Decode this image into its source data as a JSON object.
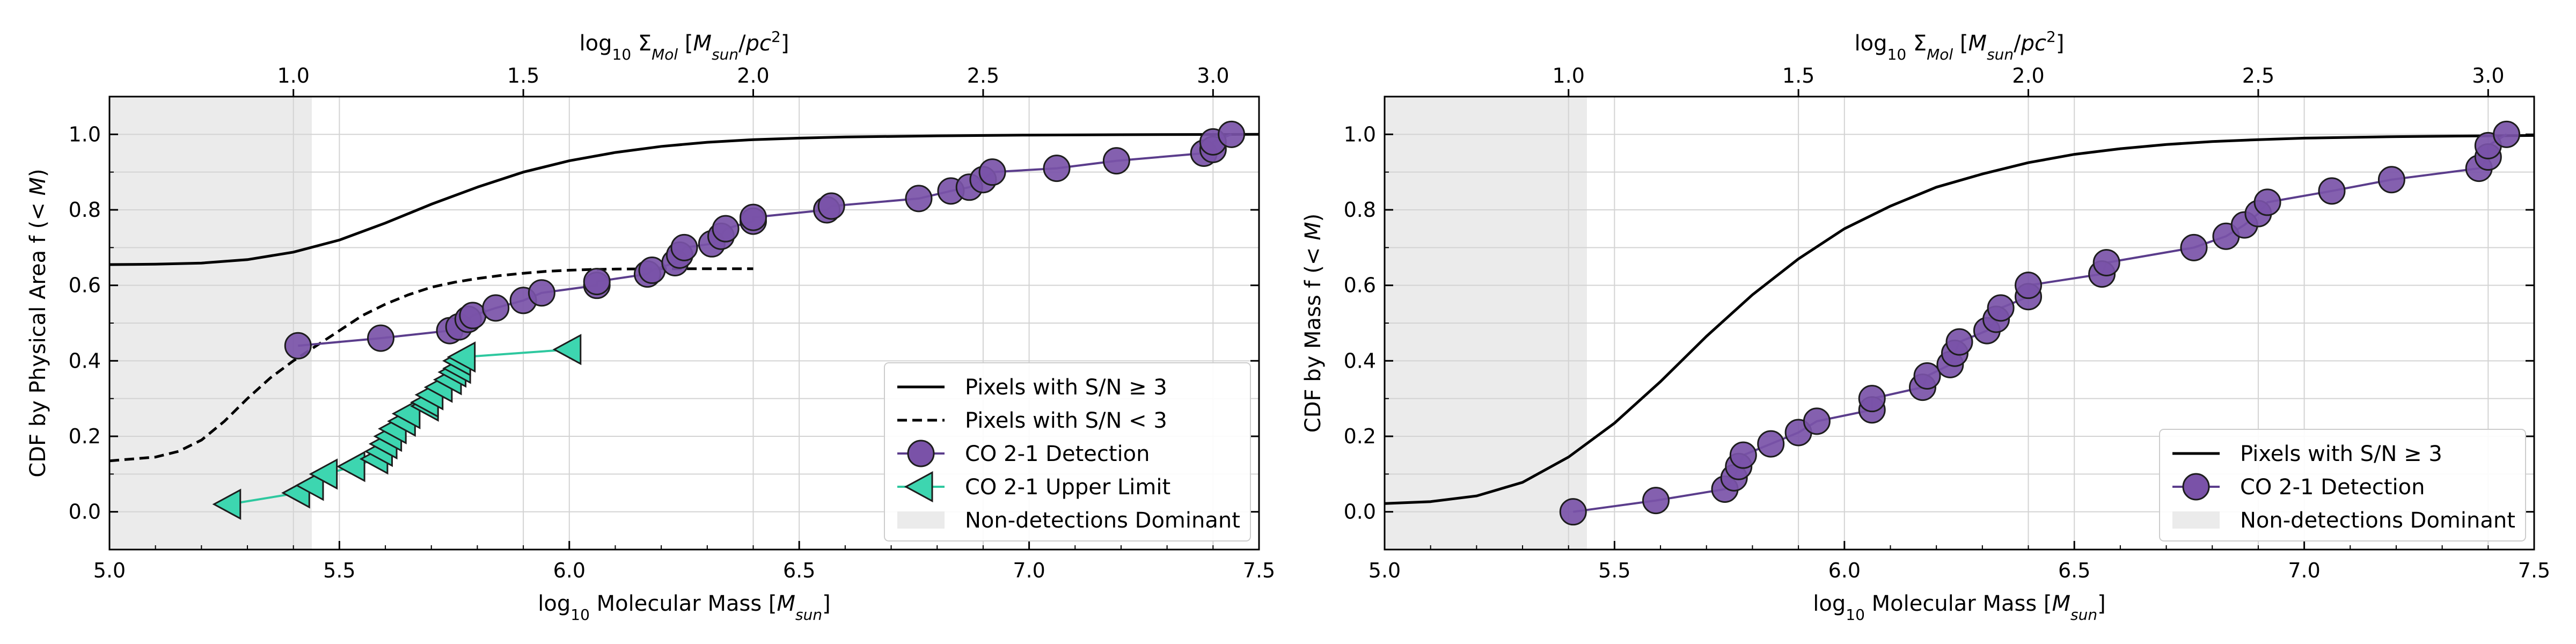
{
  "colors": {
    "detection": "#7a52a8",
    "detection_line": "#5b3d8c",
    "upper_limit": "#3dd6b0",
    "upper_limit_line": "#2ec89f",
    "shade": "#ebebeb",
    "grid": "#d3d3d3"
  },
  "chart_data": [
    {
      "type": "line",
      "xlabel": "log₁₀ Molecular Mass [M_sun]",
      "ylabel": "CDF by Physical Area f (< M)",
      "top_xlabel": "log₁₀ Σ_Mol [M_sun/pc²]",
      "xlim": [
        5.0,
        7.5
      ],
      "ylim": [
        -0.1,
        1.1
      ],
      "xticks": [
        "5.0",
        "5.5",
        "6.0",
        "6.5",
        "7.0",
        "7.5"
      ],
      "yticks": [
        "0.0",
        "0.2",
        "0.4",
        "0.6",
        "0.8",
        "1.0"
      ],
      "top_ticks": [
        "1.0",
        "1.5",
        "2.0",
        "2.5",
        "3.0"
      ],
      "top_tick_positions": [
        5.4,
        5.9,
        6.4,
        6.9,
        7.4
      ],
      "grid": true,
      "shaded_region": {
        "x": [
          5.0,
          5.44
        ],
        "label": "Non-detections Dominant"
      },
      "legend_location": "lower-right",
      "series": [
        {
          "name": "Pixels with S/N ≥ 3",
          "style": "solid",
          "x": [
            5.0,
            5.1,
            5.2,
            5.3,
            5.4,
            5.5,
            5.6,
            5.7,
            5.8,
            5.9,
            6.0,
            6.1,
            6.2,
            6.3,
            6.4,
            6.5,
            6.6,
            6.8,
            7.0,
            7.2,
            7.5
          ],
          "y": [
            0.655,
            0.656,
            0.659,
            0.668,
            0.688,
            0.72,
            0.765,
            0.815,
            0.86,
            0.9,
            0.93,
            0.952,
            0.968,
            0.979,
            0.986,
            0.99,
            0.993,
            0.996,
            0.998,
            0.999,
            1.0
          ]
        },
        {
          "name": "Pixels with S/N < 3",
          "style": "dashed",
          "x": [
            5.0,
            5.1,
            5.15,
            5.2,
            5.25,
            5.3,
            5.35,
            5.4,
            5.45,
            5.5,
            5.55,
            5.6,
            5.65,
            5.7,
            5.75,
            5.8,
            5.85,
            5.9,
            5.95,
            6.0,
            6.05,
            6.1,
            6.2,
            6.3,
            6.4
          ],
          "y": [
            0.135,
            0.145,
            0.16,
            0.19,
            0.24,
            0.3,
            0.355,
            0.4,
            0.44,
            0.48,
            0.52,
            0.55,
            0.575,
            0.595,
            0.608,
            0.618,
            0.626,
            0.632,
            0.637,
            0.64,
            0.642,
            0.643,
            0.644,
            0.644,
            0.644
          ]
        },
        {
          "name": "CO 2-1 Detection",
          "style": "line-markers",
          "marker": "circle",
          "x": [
            5.41,
            5.59,
            5.74,
            5.76,
            5.78,
            5.79,
            5.84,
            5.9,
            5.94,
            6.06,
            6.06,
            6.17,
            6.18,
            6.23,
            6.24,
            6.25,
            6.31,
            6.33,
            6.34,
            6.4,
            6.4,
            6.56,
            6.57,
            6.76,
            6.83,
            6.87,
            6.9,
            6.92,
            7.06,
            7.19,
            7.38,
            7.4,
            7.4,
            7.44
          ],
          "y": [
            0.44,
            0.46,
            0.48,
            0.49,
            0.51,
            0.52,
            0.54,
            0.56,
            0.58,
            0.6,
            0.61,
            0.63,
            0.64,
            0.66,
            0.68,
            0.7,
            0.71,
            0.73,
            0.75,
            0.77,
            0.78,
            0.8,
            0.81,
            0.83,
            0.85,
            0.86,
            0.88,
            0.9,
            0.91,
            0.93,
            0.95,
            0.96,
            0.98,
            1.0
          ]
        },
        {
          "name": "CO 2-1 Upper Limit",
          "style": "line-markers",
          "marker": "triangle-left",
          "x": [
            5.26,
            5.41,
            5.44,
            5.47,
            5.53,
            5.58,
            5.59,
            5.6,
            5.61,
            5.62,
            5.64,
            5.65,
            5.69,
            5.69,
            5.7,
            5.72,
            5.74,
            5.75,
            5.76,
            5.76,
            5.77,
            6.0
          ],
          "y": [
            0.02,
            0.05,
            0.07,
            0.1,
            0.12,
            0.14,
            0.16,
            0.18,
            0.2,
            0.22,
            0.24,
            0.26,
            0.28,
            0.29,
            0.31,
            0.33,
            0.35,
            0.37,
            0.38,
            0.4,
            0.41,
            0.43
          ]
        }
      ]
    },
    {
      "type": "line",
      "xlabel": "log₁₀ Molecular Mass [M_sun]",
      "ylabel": "CDF by Mass f (< M)",
      "top_xlabel": "log₁₀ Σ_Mol [M_sun/pc²]",
      "xlim": [
        5.0,
        7.5
      ],
      "ylim": [
        -0.1,
        1.1
      ],
      "xticks": [
        "5.0",
        "5.5",
        "6.0",
        "6.5",
        "7.0",
        "7.5"
      ],
      "yticks": [
        "0.0",
        "0.2",
        "0.4",
        "0.6",
        "0.8",
        "1.0"
      ],
      "top_ticks": [
        "1.0",
        "1.5",
        "2.0",
        "2.5",
        "3.0"
      ],
      "top_tick_positions": [
        5.4,
        5.9,
        6.4,
        6.9,
        7.4
      ],
      "grid": true,
      "shaded_region": {
        "x": [
          5.0,
          5.44
        ],
        "label": "Non-detections Dominant"
      },
      "legend_location": "lower-right",
      "series": [
        {
          "name": "Pixels with S/N ≥ 3",
          "style": "solid",
          "x": [
            5.0,
            5.1,
            5.2,
            5.3,
            5.4,
            5.5,
            5.6,
            5.7,
            5.8,
            5.9,
            6.0,
            6.1,
            6.2,
            6.3,
            6.4,
            6.5,
            6.6,
            6.7,
            6.8,
            6.9,
            7.0,
            7.2,
            7.5
          ],
          "y": [
            0.022,
            0.027,
            0.042,
            0.078,
            0.145,
            0.235,
            0.345,
            0.465,
            0.575,
            0.67,
            0.75,
            0.81,
            0.86,
            0.895,
            0.925,
            0.947,
            0.962,
            0.973,
            0.981,
            0.986,
            0.99,
            0.994,
            0.997
          ]
        },
        {
          "name": "CO 2-1 Detection",
          "style": "line-markers",
          "marker": "circle",
          "x": [
            5.41,
            5.59,
            5.74,
            5.76,
            5.77,
            5.78,
            5.84,
            5.9,
            5.94,
            6.06,
            6.06,
            6.17,
            6.18,
            6.23,
            6.24,
            6.25,
            6.31,
            6.33,
            6.34,
            6.4,
            6.4,
            6.56,
            6.57,
            6.76,
            6.83,
            6.87,
            6.9,
            6.92,
            7.06,
            7.19,
            7.38,
            7.4,
            7.4,
            7.44
          ],
          "y": [
            0.0,
            0.03,
            0.06,
            0.09,
            0.12,
            0.15,
            0.18,
            0.21,
            0.24,
            0.27,
            0.3,
            0.33,
            0.36,
            0.39,
            0.42,
            0.45,
            0.48,
            0.51,
            0.54,
            0.57,
            0.6,
            0.63,
            0.66,
            0.7,
            0.73,
            0.76,
            0.79,
            0.82,
            0.85,
            0.88,
            0.91,
            0.94,
            0.97,
            1.0
          ]
        }
      ]
    }
  ]
}
